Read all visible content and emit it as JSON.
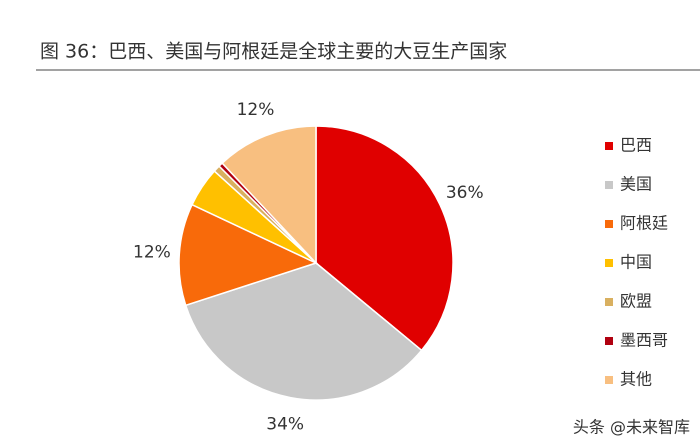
{
  "chart_data": {
    "type": "pie",
    "title": "图 36：巴西、美国与阿根廷是全球主要的大豆生产国家",
    "categories": [
      "巴西",
      "美国",
      "阿根廷",
      "中国",
      "欧盟",
      "墨西哥",
      "其他"
    ],
    "values": [
      36,
      34,
      12,
      4.7,
      0.8,
      0.5,
      12
    ],
    "value_labels": [
      "36%",
      "34%",
      "12%",
      null,
      null,
      null,
      "12%"
    ],
    "colors": [
      "#e00000",
      "#c8c8c8",
      "#f86a0a",
      "#ffc000",
      "#d9b060",
      "#b00010",
      "#f8bf80"
    ],
    "legend": "right",
    "watermark": "头条 @未来智库"
  }
}
